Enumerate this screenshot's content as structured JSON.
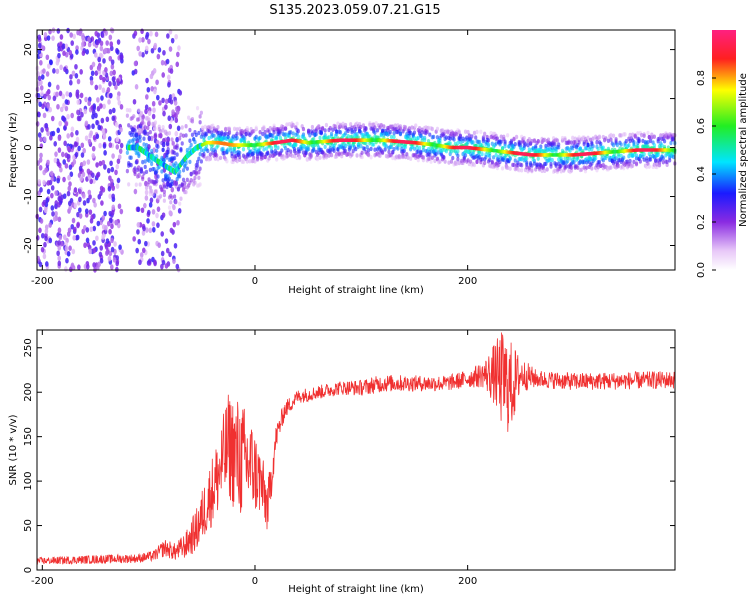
{
  "title": "S135.2023.059.07.21.G15",
  "colors": {
    "snr_line": "#f03030",
    "frame": "#000000",
    "background": "#ffffff"
  },
  "chart_data": [
    {
      "type": "heatmap",
      "name": "spectrogram",
      "xlabel": "Height of straight line (km)",
      "ylabel": "Frequency (Hz)",
      "xlim": [
        -205,
        395
      ],
      "ylim": [
        -25,
        24
      ],
      "xticks": [
        -200,
        0,
        200
      ],
      "xtick_labels": [
        "-200",
        "0",
        "200"
      ],
      "yticks": [
        20,
        10,
        0,
        -10,
        -20
      ],
      "ytick_labels": [
        "20",
        "10",
        "0",
        "-10",
        "-20"
      ],
      "grid": false,
      "colorbar": {
        "label": "Normalized spectral amplitude",
        "range": [
          0,
          1
        ],
        "ticks": [
          0.0,
          0.2,
          0.4,
          0.6,
          0.8
        ],
        "tick_labels": [
          "0.0",
          "0.2",
          "0.4",
          "0.6",
          "0.8"
        ],
        "colormap": "rainbow (white-purple-blue-cyan-green-yellow-red-pink)"
      },
      "ridge": {
        "x": [
          -110,
          -90,
          -75,
          -65,
          -55,
          -45,
          -35,
          -20,
          0,
          20,
          35,
          50,
          80,
          120,
          150,
          170,
          185,
          200,
          220,
          240,
          260,
          280,
          300,
          330,
          360,
          395
        ],
        "y": [
          0,
          -3,
          -5,
          -2,
          0,
          1,
          1,
          0.5,
          0.5,
          1,
          1.5,
          1,
          1.5,
          1.5,
          1,
          0.5,
          0,
          0,
          -0.5,
          -1,
          -1.5,
          -1.5,
          -1.5,
          -1,
          -0.5,
          -0.5
        ]
      }
    },
    {
      "type": "line",
      "name": "snr",
      "xlabel": "Height of straight line (km)",
      "ylabel": "SNR (10 * v/v)",
      "xlim": [
        -205,
        395
      ],
      "ylim": [
        0,
        270
      ],
      "xticks": [
        -200,
        0,
        200
      ],
      "xtick_labels": [
        "-200",
        "0",
        "200"
      ],
      "yticks": [
        0,
        50,
        100,
        150,
        200,
        250
      ],
      "ytick_labels": [
        "0",
        "50",
        "100",
        "150",
        "200",
        "250"
      ],
      "grid": false,
      "series": [
        {
          "x": [
            -205,
            -150,
            -110,
            -95,
            -85,
            -75,
            -65,
            -55,
            -45,
            -35,
            -25,
            -15,
            -5,
            5,
            12,
            20,
            28,
            40,
            60,
            80,
            100,
            120,
            150,
            180,
            200,
            215,
            225,
            232,
            240,
            250,
            265,
            300,
            350,
            395
          ],
          "y": [
            10,
            12,
            13,
            16,
            25,
            20,
            28,
            45,
            75,
            105,
            140,
            125,
            120,
            100,
            70,
            150,
            180,
            195,
            200,
            205,
            205,
            210,
            210,
            210,
            215,
            220,
            220,
            215,
            205,
            220,
            215,
            212,
            213,
            214
          ],
          "noise": [
            4,
            5,
            5,
            6,
            10,
            10,
            15,
            25,
            35,
            45,
            60,
            70,
            55,
            40,
            30,
            15,
            10,
            8,
            8,
            8,
            9,
            10,
            9,
            9,
            10,
            15,
            35,
            55,
            55,
            20,
            10,
            10,
            10,
            10
          ]
        }
      ]
    }
  ]
}
